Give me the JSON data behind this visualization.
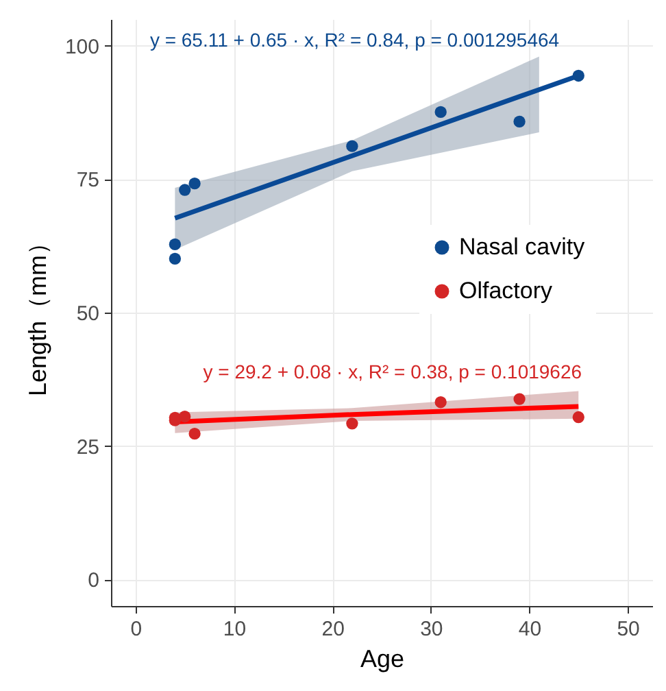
{
  "chart_data": {
    "type": "scatter",
    "xlabel": "Age",
    "ylabel": "Length（mm）",
    "xlim": [
      -2.5,
      52.5
    ],
    "ylim": [
      -5,
      105
    ],
    "xticks": [
      0,
      10,
      20,
      30,
      40,
      50
    ],
    "yticks": [
      0,
      25,
      50,
      75,
      100
    ],
    "grid": true,
    "legend": "right",
    "marker": "circle",
    "series": [
      {
        "type": "line",
        "marker": "none",
        "color": "#0a4a96",
        "x": [
          4,
          22,
          41,
          45
        ],
        "values": [
          67.7,
          79.4,
          91.8,
          94.4
        ],
        "lower": [
          61.8,
          76.5,
          83.8,
          null
        ],
        "upper": [
          73.4,
          82.3,
          98,
          null
        ]
      },
      {
        "type": "line",
        "marker": "none",
        "color": "#ff0000",
        "x": [
          4,
          22,
          45
        ],
        "values": [
          29.5,
          30.9,
          32.4
        ],
        "lower": [
          27.4,
          29.7,
          30.1
        ],
        "upper": [
          31.3,
          32.1,
          35.3
        ]
      },
      {
        "name": "Nasal cavity",
        "type": "scatter",
        "color": "#0d4a8f",
        "x": [
          4,
          4,
          5,
          6,
          22,
          31,
          39,
          45
        ],
        "values": [
          62.8,
          60.1,
          73.0,
          74.2,
          81.2,
          87.6,
          85.8,
          94.4
        ]
      },
      {
        "name": "Olfactory",
        "type": "scatter",
        "color": "#d42626",
        "x": [
          4,
          4,
          5,
          6,
          22,
          31,
          39,
          45
        ],
        "values": [
          29.8,
          30.3,
          30.5,
          27.3,
          29.2,
          33.2,
          33.8,
          30.4
        ]
      }
    ],
    "annotations": [
      "y = 65.11 + 0.65 · x,  R² = 0.84,  p = 0.001295464",
      "y = 29.2 + 0.08 · x,  R² = 0.38,  p = 0.1019626"
    ]
  }
}
